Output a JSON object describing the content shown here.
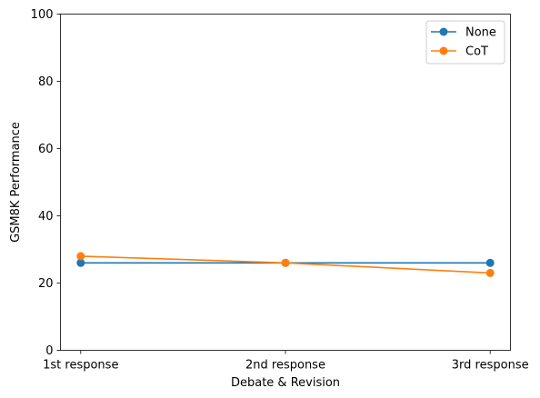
{
  "chart_data": {
    "type": "line",
    "xlabel": "Debate & Revision",
    "ylabel": "GSM8K Performance",
    "categories": [
      "1st response",
      "2nd response",
      "3rd response"
    ],
    "ylim": [
      0,
      100
    ],
    "yticks": [
      0,
      20,
      40,
      60,
      80,
      100
    ],
    "series": [
      {
        "name": "None",
        "color": "#1f77b4",
        "marker": "circle",
        "values": [
          26,
          26,
          26
        ]
      },
      {
        "name": "CoT",
        "color": "#ff7f0e",
        "marker": "circle",
        "values": [
          28,
          26,
          23
        ]
      }
    ],
    "grid": false,
    "legend": "top-right"
  }
}
